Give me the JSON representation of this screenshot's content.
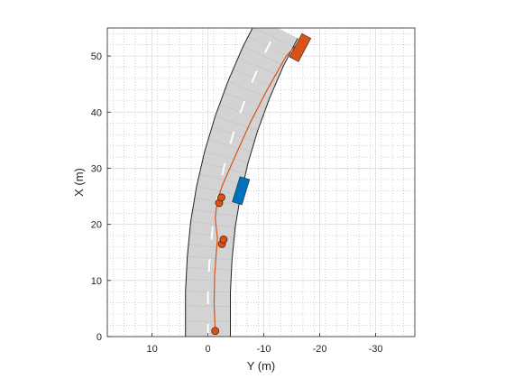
{
  "chart_data": {
    "type": "scatter",
    "title": "",
    "xlabel": "Y (m)",
    "ylabel": "X (m)",
    "xlim": [
      18,
      -37
    ],
    "ylim": [
      0,
      55
    ],
    "x_ticks": [
      10,
      0,
      -10,
      -20,
      -30
    ],
    "x_tick_labels": [
      "10",
      "0",
      "-10",
      "-20",
      "-30"
    ],
    "y_ticks": [
      0,
      10,
      20,
      30,
      40,
      50
    ],
    "y_tick_labels": [
      "0",
      "10",
      "20",
      "30",
      "40",
      "50"
    ],
    "grid": true,
    "minor_grid": true,
    "box": "on",
    "road": {
      "centerline": [
        {
          "y": 0.0,
          "x": 0
        },
        {
          "y": 0.0,
          "x": 8
        },
        {
          "y": -0.3,
          "x": 14
        },
        {
          "y": -0.9,
          "x": 20
        },
        {
          "y": -1.9,
          "x": 26
        },
        {
          "y": -3.3,
          "x": 32
        },
        {
          "y": -5.1,
          "x": 38
        },
        {
          "y": -7.3,
          "x": 44
        },
        {
          "y": -9.9,
          "x": 50
        },
        {
          "y": -12.5,
          "x": 55
        }
      ],
      "width_m": 8,
      "lane_marking_color": "#ffffff",
      "surface_color": "#d3d3d3"
    },
    "vehicles": [
      {
        "name": "",
        "y": -16.5,
        "x": 51.5,
        "length": 4.7,
        "width": 1.8,
        "heading_deg": -28,
        "color": "#d95319"
      },
      {
        "name": "",
        "y": -5.9,
        "x": 26.0,
        "length": 4.7,
        "width": 1.8,
        "heading_deg": -17,
        "color": "#0072bd"
      }
    ],
    "trajectory": {
      "color": "#d95319",
      "points": [
        {
          "y": -1.3,
          "x": 1
        },
        {
          "y": -1.1,
          "x": 6
        },
        {
          "y": -1.2,
          "x": 11
        },
        {
          "y": -1.5,
          "x": 15
        },
        {
          "y": -1.7,
          "x": 17.5
        },
        {
          "y": -1.3,
          "x": 21
        },
        {
          "y": -1.6,
          "x": 24
        },
        {
          "y": -2.6,
          "x": 27
        },
        {
          "y": -4.8,
          "x": 32
        },
        {
          "y": -7.5,
          "x": 38
        },
        {
          "y": -10.6,
          "x": 44
        },
        {
          "y": -14.0,
          "x": 50
        },
        {
          "y": -16.3,
          "x": 52.5
        }
      ],
      "markers": [
        {
          "y": -1.3,
          "x": 1.0
        },
        {
          "y": -2.5,
          "x": 16.5
        },
        {
          "y": -2.8,
          "x": 17.3
        },
        {
          "y": -2.0,
          "x": 23.8
        },
        {
          "y": -2.4,
          "x": 24.8
        }
      ]
    }
  }
}
